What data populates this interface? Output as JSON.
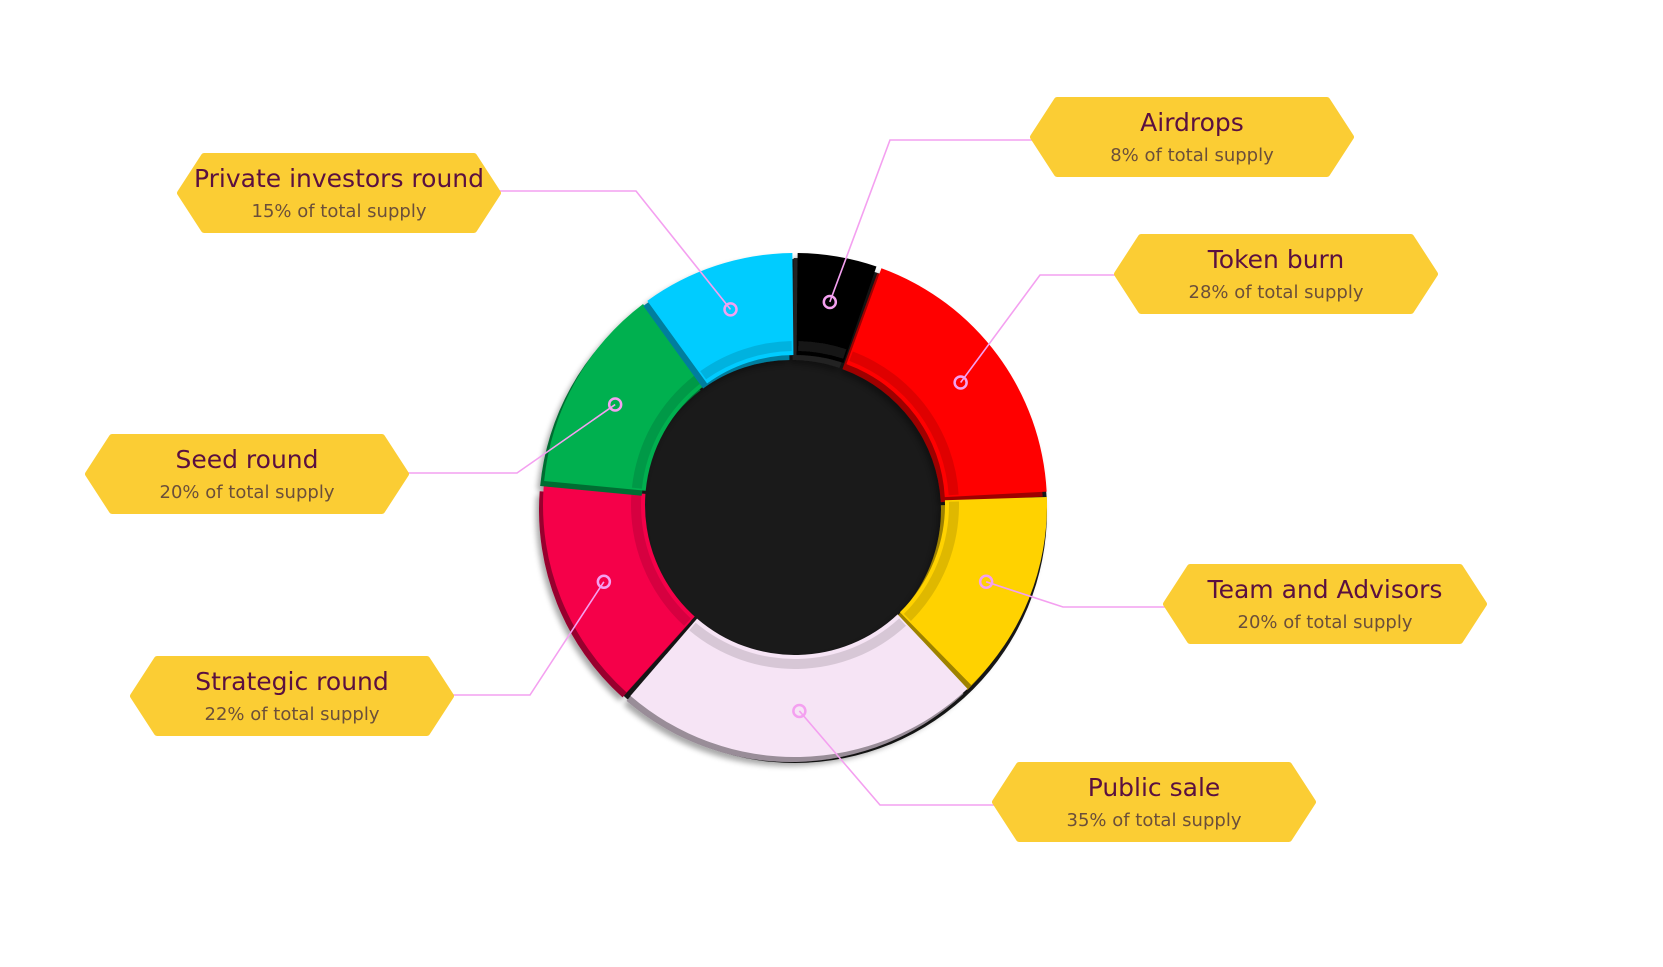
{
  "chart_data": {
    "type": "pie",
    "style": "donut",
    "title": "",
    "segments": [
      {
        "key": "airdrops",
        "name": "Airdrops",
        "caption": "8% of total supply",
        "value": 8,
        "color": "#000000"
      },
      {
        "key": "token_burn",
        "name": "Token burn",
        "caption": "28% of total supply",
        "value": 28,
        "color": "#ff0000"
      },
      {
        "key": "team_advisors",
        "name": "Team and Advisors",
        "caption": "20% of total supply",
        "value": 20,
        "color": "#ffd200"
      },
      {
        "key": "public_sale",
        "name": "Public sale",
        "caption": "35% of total supply",
        "value": 35,
        "color": "#f6e4f5"
      },
      {
        "key": "strategic_round",
        "name": "Strategic round",
        "caption": "22% of total supply",
        "value": 22,
        "color": "#f5004a"
      },
      {
        "key": "seed_round",
        "name": "Seed round",
        "caption": "20% of total supply",
        "value": 20,
        "color": "#00b050"
      },
      {
        "key": "private_investors",
        "name": "Private investors round",
        "caption": "15% of total supply",
        "value": 15,
        "color": "#00ccff"
      }
    ]
  },
  "colors": {
    "label_fill": "#fbcd34",
    "label_name_text": "#5a1040",
    "label_caption_text": "#6b4f3a",
    "leader_line": "#f4a0f0"
  }
}
